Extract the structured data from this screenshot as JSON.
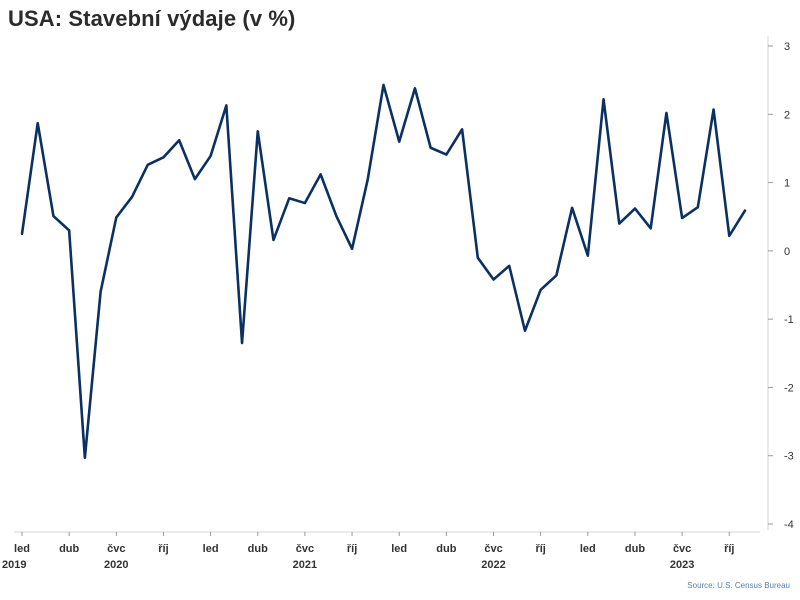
{
  "chart_data": {
    "type": "line",
    "title": "USA: Stavební výdaje (v %)",
    "source": "Source: U.S. Census Bureau",
    "ylim": [
      -4,
      3
    ],
    "yticks": [
      3,
      2,
      1,
      0,
      -1,
      -2,
      -3,
      -4
    ],
    "ytick_labels": [
      "3",
      "2",
      "1",
      "0",
      "-1",
      "-2",
      "-3",
      "-4"
    ],
    "grid": false,
    "line_color": "#0a3161",
    "x_ticks": [
      {
        "index": 0,
        "month": "led",
        "year": "2019"
      },
      {
        "index": 3,
        "month": "dub",
        "year": ""
      },
      {
        "index": 6,
        "month": "čvc",
        "year": "2020"
      },
      {
        "index": 9,
        "month": "říj",
        "year": ""
      },
      {
        "index": 12,
        "month": "led",
        "year": ""
      },
      {
        "index": 15,
        "month": "dub",
        "year": ""
      },
      {
        "index": 18,
        "month": "čvc",
        "year": "2021"
      },
      {
        "index": 21,
        "month": "říj",
        "year": ""
      },
      {
        "index": 24,
        "month": "led",
        "year": ""
      },
      {
        "index": 27,
        "month": "dub",
        "year": ""
      },
      {
        "index": 30,
        "month": "čvc",
        "year": "2022"
      },
      {
        "index": 33,
        "month": "říj",
        "year": ""
      },
      {
        "index": 36,
        "month": "led",
        "year": ""
      },
      {
        "index": 39,
        "month": "dub",
        "year": ""
      },
      {
        "index": 42,
        "month": "čvc",
        "year": "2023"
      },
      {
        "index": 45,
        "month": "říj",
        "year": ""
      }
    ],
    "series": [
      {
        "values": [
          0.25,
          1.87,
          0.51,
          0.3,
          -3.03,
          -0.6,
          0.49,
          0.79,
          1.26,
          1.37,
          1.62,
          1.05,
          1.39,
          2.13,
          -1.35,
          1.75,
          0.16,
          0.77,
          0.7,
          1.12,
          0.51,
          0.03,
          1.05,
          2.43,
          1.6,
          2.38,
          1.51,
          1.41,
          1.78,
          -0.1,
          -0.42,
          -0.22,
          -1.17,
          -0.57,
          -0.36,
          0.63,
          -0.07,
          2.22,
          0.4,
          0.62,
          0.33,
          2.02,
          0.48,
          0.64,
          2.07,
          0.22,
          0.59
        ]
      }
    ]
  }
}
